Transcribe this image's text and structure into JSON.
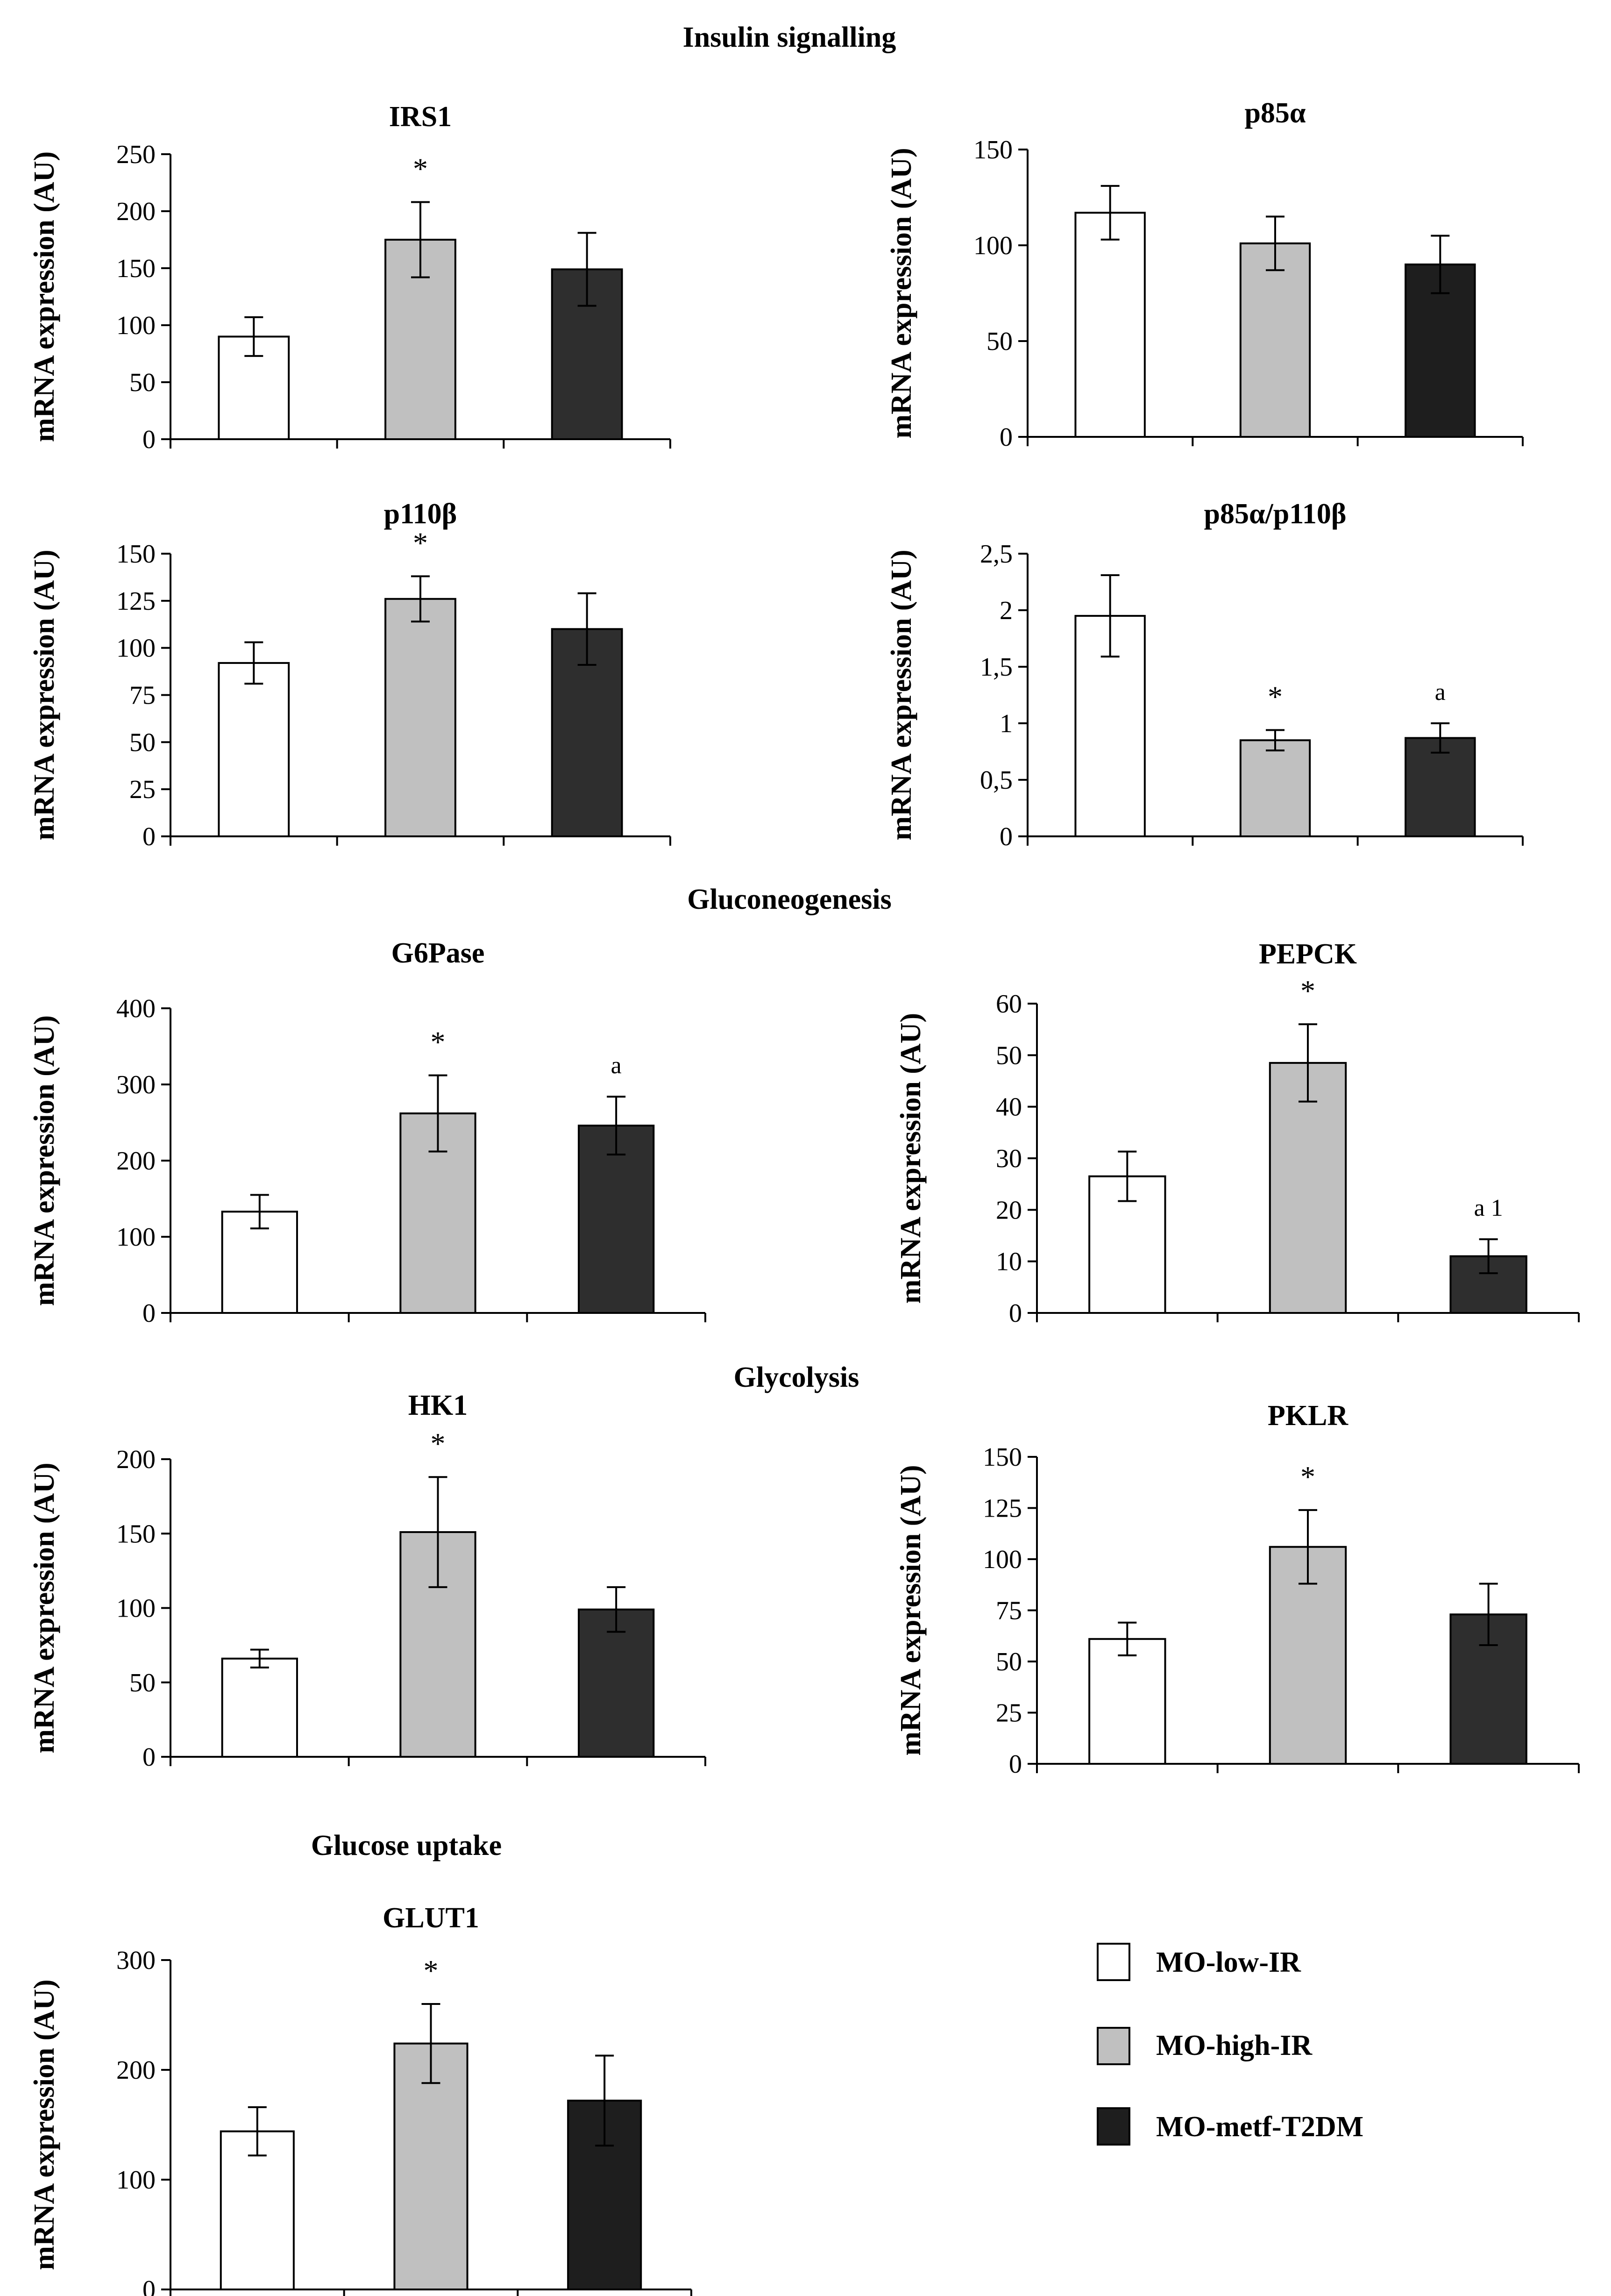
{
  "sections": {
    "insulin": "Insulin  signalling",
    "gluconeogenesis": "Gluconeogenesis",
    "glycolysis": "Glycolysis",
    "glucose_uptake": "Glucose uptake"
  },
  "legend": [
    {
      "label": "MO-low-IR",
      "color": "#ffffff"
    },
    {
      "label": "MO-high-IR",
      "color": "#c0c0c0"
    },
    {
      "label": "MO-metf-T2DM",
      "color": "#1e1e1e"
    }
  ],
  "chart_data": [
    {
      "id": "irs1",
      "type": "bar",
      "title": "IRS1",
      "ylabel": "mRNA expression (AU)",
      "ylim": [
        0,
        250
      ],
      "yticks": [
        "0",
        "50",
        "100",
        "150",
        "200",
        "250"
      ],
      "categories": [
        "MO-low-IR",
        "MO-high-IR",
        "MO-metf-T2DM"
      ],
      "values": [
        90,
        175,
        149
      ],
      "errors": [
        17,
        33,
        32
      ],
      "colors": [
        "#ffffff",
        "#c0c0c0",
        "#2e2e2e"
      ],
      "annotations": [
        "",
        "*",
        ""
      ]
    },
    {
      "id": "p85a",
      "type": "bar",
      "title": "p85α",
      "ylabel": "mRNA expression (AU)",
      "ylim": [
        0,
        150
      ],
      "yticks": [
        "0",
        "50",
        "100",
        "150"
      ],
      "categories": [
        "MO-low-IR",
        "MO-high-IR",
        "MO-metf-T2DM"
      ],
      "values": [
        117,
        101,
        90
      ],
      "errors": [
        14,
        14,
        15
      ],
      "colors": [
        "#ffffff",
        "#c0c0c0",
        "#1e1e1e"
      ],
      "annotations": [
        "",
        "",
        ""
      ]
    },
    {
      "id": "p110b",
      "type": "bar",
      "title": "p110β",
      "ylabel": "mRNA expression (AU)",
      "ylim": [
        0,
        150
      ],
      "yticks": [
        "0",
        "25",
        "50",
        "75",
        "100",
        "125",
        "150"
      ],
      "categories": [
        "MO-low-IR",
        "MO-high-IR",
        "MO-metf-T2DM"
      ],
      "values": [
        92,
        126,
        110
      ],
      "errors": [
        11,
        12,
        19
      ],
      "colors": [
        "#ffffff",
        "#c0c0c0",
        "#2e2e2e"
      ],
      "annotations": [
        "",
        "*",
        ""
      ]
    },
    {
      "id": "ratio",
      "type": "bar",
      "title": "p85α/p110β",
      "ylabel": "mRNA expression (AU)",
      "ylim": [
        0,
        2.5
      ],
      "yticks": [
        "0",
        "0,5",
        "1",
        "1,5",
        "2",
        "2,5"
      ],
      "categories": [
        "MO-low-IR",
        "MO-high-IR",
        "MO-metf-T2DM"
      ],
      "values": [
        1.95,
        0.85,
        0.87
      ],
      "errors": [
        0.36,
        0.09,
        0.13
      ],
      "colors": [
        "#ffffff",
        "#c0c0c0",
        "#2e2e2e"
      ],
      "annotations": [
        "",
        "*",
        "a"
      ]
    },
    {
      "id": "g6pase",
      "type": "bar",
      "title": "G6Pase",
      "ylabel": "mRNA expression (AU)",
      "ylim": [
        0,
        400
      ],
      "yticks": [
        "0",
        "100",
        "200",
        "300",
        "400"
      ],
      "categories": [
        "MO-low-IR",
        "MO-high-IR",
        "MO-metf-T2DM"
      ],
      "values": [
        133,
        262,
        246
      ],
      "errors": [
        22,
        50,
        38
      ],
      "colors": [
        "#ffffff",
        "#c0c0c0",
        "#2e2e2e"
      ],
      "annotations": [
        "",
        "*",
        "a"
      ]
    },
    {
      "id": "pepck",
      "type": "bar",
      "title": "PEPCK",
      "ylabel": "mRNA expression (AU)",
      "ylim": [
        0,
        60
      ],
      "yticks": [
        "0",
        "10",
        "20",
        "30",
        "40",
        "50",
        "60"
      ],
      "categories": [
        "MO-low-IR",
        "MO-high-IR",
        "MO-metf-T2DM"
      ],
      "values": [
        26.5,
        48.5,
        11
      ],
      "errors": [
        4.8,
        7.5,
        3.3
      ],
      "colors": [
        "#ffffff",
        "#c0c0c0",
        "#2e2e2e"
      ],
      "annotations": [
        "",
        "*",
        "a 1"
      ]
    },
    {
      "id": "hk1",
      "type": "bar",
      "title": "HK1",
      "ylabel": "mRNA expression (AU)",
      "ylim": [
        0,
        200
      ],
      "yticks": [
        "0",
        "50",
        "100",
        "150",
        "200"
      ],
      "categories": [
        "MO-low-IR",
        "MO-high-IR",
        "MO-metf-T2DM"
      ],
      "values": [
        66,
        151,
        99
      ],
      "errors": [
        6,
        37,
        15
      ],
      "colors": [
        "#ffffff",
        "#c0c0c0",
        "#2e2e2e"
      ],
      "annotations": [
        "",
        "*",
        ""
      ]
    },
    {
      "id": "pklr",
      "type": "bar",
      "title": "PKLR",
      "ylabel": "mRNA expression (AU)",
      "ylim": [
        0,
        150
      ],
      "yticks": [
        "0",
        "25",
        "50",
        "75",
        "100",
        "125",
        "150"
      ],
      "categories": [
        "MO-low-IR",
        "MO-high-IR",
        "MO-metf-T2DM"
      ],
      "values": [
        61,
        106,
        73
      ],
      "errors": [
        8,
        18,
        15
      ],
      "colors": [
        "#ffffff",
        "#c0c0c0",
        "#2e2e2e"
      ],
      "annotations": [
        "",
        "*",
        ""
      ]
    },
    {
      "id": "glut1",
      "type": "bar",
      "title": "GLUT1",
      "ylabel": "mRNA expression (AU)",
      "ylim": [
        0,
        300
      ],
      "yticks": [
        "0",
        "100",
        "200",
        "300"
      ],
      "categories": [
        "MO-low-IR",
        "MO-high-IR",
        "MO-metf-T2DM"
      ],
      "values": [
        144,
        224,
        172
      ],
      "errors": [
        22,
        36,
        41
      ],
      "colors": [
        "#ffffff",
        "#c0c0c0",
        "#1e1e1e"
      ],
      "annotations": [
        "",
        "*",
        ""
      ]
    }
  ]
}
